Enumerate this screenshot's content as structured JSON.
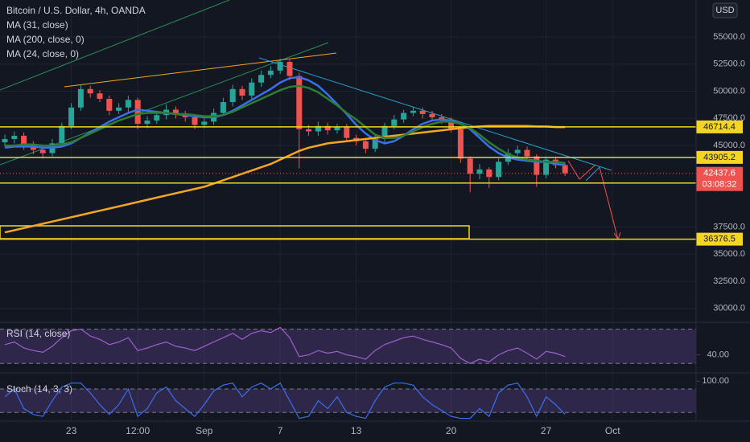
{
  "chart_data": {
    "type": "candlestick",
    "title": "Bitcoin / U.S. Dollar, 4h, OANDA",
    "currency": "USD",
    "categories": [
      null,
      null,
      null,
      null,
      null,
      null,
      null,
      "23",
      null,
      null,
      null,
      null,
      null,
      null,
      "12:00",
      null,
      null,
      null,
      null,
      null,
      null,
      "Sep",
      null,
      null,
      null,
      null,
      null,
      null,
      null,
      "7",
      null,
      null,
      null,
      null,
      null,
      null,
      null,
      "13",
      null,
      null,
      null,
      null,
      null,
      null,
      null,
      null,
      null,
      "20",
      null,
      null,
      null,
      null,
      null,
      null,
      null,
      null,
      null,
      "27",
      null,
      null,
      null,
      null,
      null,
      null,
      "Oct",
      null,
      null,
      null,
      null,
      null,
      null,
      null,
      null,
      null
    ],
    "open": [
      45300,
      45600,
      45900,
      45000,
      44600,
      44300,
      45200,
      46800,
      48500,
      50200,
      49800,
      49300,
      48200,
      48500,
      49200,
      47000,
      47300,
      47800,
      48300,
      47900,
      47600,
      46900,
      47200,
      48000,
      49000,
      50200,
      49600,
      50800,
      51500,
      51900,
      52700,
      51400,
      46500,
      46300,
      46800,
      46400,
      46700,
      45700,
      45400,
      44700,
      45600,
      46800,
      47400,
      48000,
      48200,
      47900,
      47600,
      47300,
      46500,
      43800,
      42400,
      42800,
      42100,
      43500,
      44300,
      44600,
      44000,
      42300,
      43700,
      43200,
      null,
      null,
      null,
      null,
      null,
      null,
      null,
      null,
      null,
      null,
      null,
      null,
      null,
      null
    ],
    "high": [
      46000,
      46300,
      46200,
      45400,
      45000,
      45600,
      47100,
      48900,
      50600,
      50500,
      50100,
      49600,
      48900,
      49600,
      49400,
      47700,
      48200,
      48800,
      48600,
      48200,
      47900,
      47600,
      48400,
      49400,
      50600,
      50500,
      51200,
      51900,
      52300,
      53000,
      52900,
      51700,
      46900,
      47200,
      47100,
      47000,
      47000,
      46000,
      45700,
      45900,
      47100,
      47800,
      48300,
      48600,
      48500,
      48200,
      47900,
      47600,
      46800,
      44000,
      43300,
      43000,
      43800,
      44700,
      45000,
      44900,
      44200,
      44000,
      43900,
      43400,
      null,
      null,
      null,
      null,
      null,
      null,
      null,
      null,
      null,
      null,
      null,
      null,
      null,
      null
    ],
    "low": [
      44900,
      45200,
      44600,
      44200,
      43800,
      44000,
      44900,
      46500,
      48200,
      49400,
      49000,
      47800,
      47900,
      48100,
      46500,
      46600,
      47000,
      47400,
      47500,
      47200,
      46500,
      46600,
      46900,
      47700,
      48600,
      49200,
      49300,
      50400,
      51200,
      51600,
      51000,
      42900,
      45900,
      45900,
      46000,
      46100,
      45300,
      45000,
      44300,
      44400,
      45300,
      46500,
      47100,
      47700,
      47500,
      47300,
      47000,
      46200,
      43400,
      40700,
      41900,
      41100,
      41800,
      43200,
      44000,
      43700,
      41200,
      42000,
      42900,
      42200,
      null,
      null,
      null,
      null,
      null,
      null,
      null,
      null,
      null,
      null,
      null,
      null,
      null,
      null
    ],
    "close": [
      45600,
      45900,
      45000,
      44600,
      44300,
      45200,
      46800,
      48500,
      50200,
      49800,
      49300,
      48200,
      48500,
      49200,
      47000,
      47300,
      47800,
      48300,
      47900,
      47600,
      46900,
      47200,
      48000,
      49000,
      50200,
      49600,
      50800,
      51500,
      51900,
      52700,
      51400,
      46500,
      46300,
      46800,
      46400,
      46700,
      45700,
      45400,
      44700,
      45600,
      46800,
      47400,
      48000,
      48200,
      47900,
      47600,
      47300,
      46500,
      43800,
      42400,
      42800,
      42100,
      43500,
      44300,
      44600,
      44000,
      42300,
      43700,
      43200,
      42437.6,
      null,
      null,
      null,
      null,
      null,
      null,
      null,
      null,
      null,
      null,
      null,
      null,
      null,
      null
    ],
    "up_color": "#26a69a",
    "down_color": "#ef5350",
    "series": [
      {
        "name": "MA (31, close)",
        "color": "#3a6ff0",
        "values": [
          44800,
          44900,
          44900,
          44900,
          44800,
          44800,
          44900,
          45200,
          45700,
          46200,
          46700,
          47200,
          47600,
          48000,
          48300,
          48200,
          48100,
          48000,
          47900,
          47800,
          47700,
          47600,
          47600,
          47800,
          48200,
          48700,
          49200,
          49700,
          50200,
          50800,
          51200,
          51300,
          51000,
          50500,
          49700,
          48800,
          47900,
          46900,
          46100,
          45500,
          45200,
          45400,
          45900,
          46500,
          47000,
          47300,
          47400,
          47300,
          47000,
          46500,
          45700,
          44900,
          44300,
          43900,
          43700,
          43600,
          43500,
          43500,
          43300,
          43200,
          null,
          null,
          null,
          null,
          null,
          null,
          null,
          null,
          null,
          null,
          null,
          null,
          null,
          null
        ]
      },
      {
        "name": "MA (200, close, 0)",
        "color": "#f5a623",
        "values": [
          37000,
          37200,
          37400,
          37600,
          37800,
          38000,
          38200,
          38400,
          38600,
          38800,
          39000,
          39200,
          39400,
          39600,
          39800,
          40000,
          40200,
          40400,
          40600,
          40800,
          41000,
          41200,
          41500,
          41800,
          42100,
          42400,
          42700,
          43000,
          43300,
          43700,
          44100,
          44500,
          44800,
          45000,
          45200,
          45300,
          45400,
          45500,
          45600,
          45700,
          45800,
          45900,
          46000,
          46100,
          46200,
          46300,
          46400,
          46500,
          46600,
          46700,
          46750,
          46800,
          46800,
          46800,
          46800,
          46800,
          46750,
          46750,
          46700,
          46700,
          null,
          null,
          null,
          null,
          null,
          null,
          null,
          null,
          null,
          null,
          null,
          null,
          null,
          null
        ]
      },
      {
        "name": "MA (24, close, 0)",
        "color": "#2e7d32",
        "values": [
          45000,
          45000,
          45100,
          45100,
          45000,
          45000,
          45100,
          45300,
          45700,
          46100,
          46500,
          46900,
          47300,
          47600,
          47900,
          48000,
          48000,
          48000,
          47900,
          47900,
          47800,
          47700,
          47700,
          47800,
          48100,
          48500,
          48900,
          49300,
          49700,
          50100,
          50400,
          50500,
          50300,
          49900,
          49300,
          48700,
          48000,
          47400,
          46700,
          46000,
          45700,
          45700,
          45900,
          46300,
          46700,
          47000,
          47200,
          47200,
          47000,
          46600,
          46000,
          45300,
          44700,
          44200,
          43900,
          43700,
          43600,
          43500,
          43500,
          43400,
          null,
          null,
          null,
          null,
          null,
          null,
          null,
          null,
          null,
          null,
          null,
          null,
          null,
          null
        ]
      }
    ],
    "ylim": [
      28800,
      58400
    ],
    "yticks": [
      {
        "value": 55000,
        "label": "55000.0"
      },
      {
        "value": 52500,
        "label": "52500.0"
      },
      {
        "value": 50000,
        "label": "50000.0"
      },
      {
        "value": 47500,
        "label": "47500.0"
      },
      {
        "value": 45000,
        "label": "45000.0"
      },
      {
        "value": 37500,
        "label": "37500.0"
      },
      {
        "value": 35000,
        "label": "35000.0"
      },
      {
        "value": 32500,
        "label": "32500.0"
      },
      {
        "value": 30000,
        "label": "30000.0"
      }
    ],
    "levels": [
      46714.4,
      43905.2,
      41545.4,
      36376.5
    ],
    "level_color": "#f5d524",
    "last_price": 42437.6,
    "countdown": "03:08:32",
    "grid": true,
    "rsi": {
      "title": "RSI (14, close)",
      "color": "#9c5fd0",
      "ylim": [
        20,
        77
      ],
      "yticks": [
        {
          "value": 40,
          "label": "40.00"
        }
      ],
      "bands": [
        30,
        70
      ],
      "values": [
        52,
        55,
        48,
        45,
        43,
        50,
        60,
        68,
        70,
        62,
        58,
        52,
        55,
        60,
        45,
        48,
        52,
        55,
        50,
        48,
        45,
        50,
        55,
        60,
        65,
        58,
        65,
        68,
        66,
        72,
        60,
        38,
        40,
        45,
        42,
        44,
        40,
        38,
        35,
        45,
        52,
        56,
        60,
        62,
        58,
        55,
        52,
        48,
        36,
        30,
        35,
        32,
        40,
        45,
        48,
        42,
        35,
        44,
        42,
        38,
        null,
        null,
        null,
        null,
        null,
        null,
        null,
        null,
        null,
        null,
        null,
        null,
        null,
        null
      ]
    },
    "stoch": {
      "title": "Stoch (14, 3, 3)",
      "color": "#3a6ff0",
      "ylim": [
        0,
        117
      ],
      "yticks": [
        {
          "value": 100,
          "label": "100.00"
        }
      ],
      "bands": [
        20,
        80
      ],
      "values": [
        60,
        80,
        30,
        15,
        10,
        50,
        85,
        95,
        95,
        70,
        40,
        15,
        40,
        80,
        10,
        30,
        70,
        85,
        50,
        30,
        10,
        40,
        75,
        90,
        95,
        60,
        85,
        95,
        80,
        95,
        50,
        5,
        10,
        50,
        30,
        60,
        20,
        10,
        5,
        50,
        85,
        95,
        95,
        90,
        60,
        40,
        25,
        10,
        5,
        5,
        30,
        10,
        70,
        90,
        95,
        60,
        10,
        60,
        40,
        15,
        null,
        null,
        null,
        null,
        null,
        null,
        null,
        null,
        null,
        null,
        null,
        null,
        null,
        null
      ]
    }
  }
}
